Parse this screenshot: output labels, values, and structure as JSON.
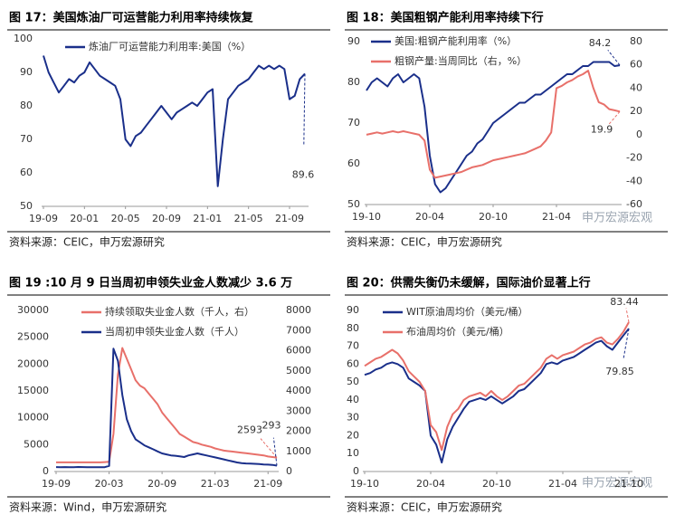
{
  "chart_data": [
    {
      "type": "line",
      "title": "图 17：美国炼油厂可运营能力利用率持续恢复",
      "source": "资料来源：CEIC，申万宏源研究",
      "categories": [
        "19-09",
        null,
        null,
        null,
        null,
        null,
        null,
        null,
        "20-01",
        null,
        null,
        null,
        null,
        null,
        null,
        null,
        "20-05",
        null,
        null,
        null,
        null,
        null,
        null,
        null,
        "20-09",
        null,
        null,
        null,
        null,
        null,
        null,
        null,
        "21-01",
        null,
        null,
        null,
        null,
        null,
        null,
        null,
        "21-05",
        null,
        null,
        null,
        null,
        null,
        null,
        null,
        "21-09",
        null,
        null,
        null
      ],
      "series": [
        {
          "name": "炼油厂可运营能力利用率:美国（%）",
          "color": "#1a2f8a",
          "values": [
            95,
            90,
            87,
            84,
            86,
            88,
            87,
            89,
            90,
            93,
            91,
            89,
            88,
            87,
            86,
            82,
            70,
            68,
            71,
            72,
            74,
            76,
            78,
            80,
            78,
            76,
            78,
            79,
            80,
            81,
            80,
            82,
            84,
            85,
            56,
            70,
            82,
            84,
            86,
            87,
            88,
            90,
            92,
            91,
            92,
            91,
            92,
            91,
            82,
            83,
            88,
            89.6
          ]
        }
      ],
      "annotations": [
        "89.6"
      ],
      "ylim": [
        50,
        100
      ],
      "yticks": [
        50,
        60,
        70,
        80,
        90,
        100
      ],
      "grid": false
    },
    {
      "type": "line",
      "title": "图 18：美国粗钢产能利用率持续下行",
      "source": "资料来源：CEIC，申万宏源研究",
      "watermark": "申万宏源宏观",
      "categories": [
        "19-10",
        null,
        null,
        null,
        null,
        null,
        null,
        null,
        null,
        null,
        null,
        null,
        "20-04",
        null,
        null,
        null,
        null,
        null,
        null,
        null,
        null,
        null,
        null,
        null,
        "20-10",
        null,
        null,
        null,
        null,
        null,
        null,
        null,
        null,
        null,
        null,
        null,
        "21-04",
        null,
        null,
        null,
        null,
        null,
        null,
        null,
        null,
        null,
        null,
        null,
        null
      ],
      "series": [
        {
          "name": "美国:粗钢产能利用率（%）",
          "color": "#1a2f8a",
          "values": [
            78,
            80,
            81,
            80,
            79,
            81,
            82,
            80,
            81,
            82,
            81,
            74,
            62,
            55,
            53,
            54,
            56,
            58,
            60,
            62,
            63,
            65,
            66,
            68,
            70,
            71,
            72,
            73,
            74,
            75,
            75,
            76,
            77,
            77,
            78,
            79,
            80,
            81,
            82,
            82,
            83,
            84,
            84,
            85,
            85,
            85,
            85,
            84,
            84.2
          ]
        },
        {
          "name": "粗钢产量:当周同比（右，%）",
          "color": "#e8706a",
          "axis": "y2",
          "values": [
            0,
            1,
            2,
            1,
            2,
            3,
            2,
            3,
            2,
            1,
            0,
            -5,
            -30,
            -37,
            -36,
            -35,
            -34,
            -33,
            -32,
            -30,
            -28,
            -27,
            -26,
            -24,
            -22,
            -21,
            -20,
            -19,
            -18,
            -17,
            -16,
            -14,
            -12,
            -10,
            -5,
            2,
            40,
            42,
            45,
            47,
            50,
            52,
            55,
            40,
            28,
            26,
            22,
            21,
            19.9
          ]
        }
      ],
      "annotations": [
        "84.2",
        "19.9"
      ],
      "ylim": [
        50,
        90
      ],
      "yticks": [
        50,
        60,
        70,
        80,
        90
      ],
      "y2lim": [
        -60,
        80
      ],
      "y2ticks": [
        -60,
        -40,
        -20,
        0,
        20,
        40,
        60,
        80
      ],
      "grid": false
    },
    {
      "type": "line",
      "title": "图 19 :10 月 9 日当周初申领失业金人数减少 3.6 万",
      "source": "资料来源：Wind，申万宏源研究",
      "categories": [
        "19-09",
        null,
        null,
        null,
        null,
        null,
        null,
        null,
        null,
        null,
        null,
        null,
        "20-03",
        null,
        null,
        null,
        null,
        null,
        null,
        null,
        null,
        null,
        null,
        null,
        "20-09",
        null,
        null,
        null,
        null,
        null,
        null,
        null,
        null,
        null,
        null,
        null,
        "21-03",
        null,
        null,
        null,
        null,
        null,
        null,
        null,
        null,
        null,
        null,
        null,
        "21-09",
        null,
        null
      ],
      "series": [
        {
          "name": "持续领取失业金人数（千人，右）",
          "color": "#e8706a",
          "values": [
            1700,
            1700,
            1700,
            1700,
            1700,
            1700,
            1700,
            1700,
            1700,
            1700,
            1700,
            1750,
            1800,
            7000,
            18000,
            23000,
            21000,
            19000,
            17000,
            16000,
            15500,
            14500,
            13500,
            12500,
            11000,
            10000,
            9000,
            8000,
            7000,
            6500,
            6000,
            5500,
            5300,
            5000,
            4800,
            4600,
            4300,
            4100,
            3900,
            3800,
            3700,
            3600,
            3500,
            3400,
            3300,
            3200,
            3100,
            3000,
            2800,
            2700,
            2593
          ]
        },
        {
          "name": "当周初申领失业金人数（千人）",
          "color": "#1a2f8a",
          "axis": "y2",
          "values": [
            220,
            215,
            220,
            210,
            215,
            225,
            220,
            210,
            215,
            215,
            210,
            215,
            280,
            6100,
            5500,
            3800,
            2600,
            2000,
            1600,
            1450,
            1300,
            1200,
            1100,
            1000,
            900,
            850,
            800,
            780,
            750,
            720,
            800,
            850,
            900,
            850,
            800,
            750,
            700,
            650,
            600,
            550,
            500,
            450,
            420,
            400,
            390,
            380,
            370,
            350,
            340,
            330,
            293
          ]
        }
      ],
      "annotations": [
        "2593",
        "293"
      ],
      "ylim": [
        0,
        30000
      ],
      "yticks": [
        0,
        5000,
        10000,
        15000,
        20000,
        25000,
        30000
      ],
      "y2lim": [
        0,
        8000
      ],
      "y2ticks": [
        0,
        1000,
        2000,
        3000,
        4000,
        5000,
        6000,
        7000,
        8000
      ],
      "grid": false
    },
    {
      "type": "line",
      "title": "图 20：供需失衡仍未缓解，国际油价显著上行",
      "source": "资料来源：CEIC，申万宏源研究",
      "watermark": "申万宏源宏观",
      "categories": [
        "19-10",
        null,
        null,
        null,
        null,
        null,
        null,
        null,
        null,
        null,
        null,
        null,
        "20-04",
        null,
        null,
        null,
        null,
        null,
        null,
        null,
        null,
        null,
        null,
        null,
        "20-10",
        null,
        null,
        null,
        null,
        null,
        null,
        null,
        null,
        null,
        null,
        null,
        "21-04",
        null,
        null,
        null,
        null,
        null,
        null,
        null,
        null,
        null,
        null,
        null,
        "21-10"
      ],
      "series": [
        {
          "name": "WIT原油周均价（美元/桶）",
          "color": "#1a2f8a",
          "values": [
            54,
            55,
            57,
            58,
            60,
            61,
            60,
            58,
            52,
            50,
            48,
            45,
            20,
            15,
            5,
            18,
            25,
            30,
            35,
            39,
            40,
            41,
            40,
            42,
            40,
            38,
            40,
            42,
            45,
            46,
            49,
            52,
            55,
            60,
            61,
            60,
            62,
            63,
            64,
            66,
            68,
            70,
            72,
            73,
            70,
            68,
            72,
            76,
            79.85
          ]
        },
        {
          "name": "布油周均价（美元/桶）",
          "color": "#e8706a",
          "values": [
            59,
            61,
            63,
            64,
            66,
            68,
            66,
            62,
            56,
            53,
            50,
            45,
            26,
            22,
            12,
            25,
            32,
            35,
            40,
            42,
            43,
            44,
            42,
            45,
            42,
            40,
            42,
            45,
            48,
            49,
            52,
            55,
            58,
            63,
            65,
            63,
            65,
            66,
            67,
            69,
            71,
            72,
            74,
            75,
            72,
            71,
            74,
            78,
            83.44
          ]
        }
      ],
      "annotations": [
        "79.85",
        "83.44"
      ],
      "ylim": [
        0,
        90
      ],
      "yticks": [
        0,
        10,
        20,
        30,
        40,
        50,
        60,
        70,
        80,
        90
      ],
      "grid": false
    }
  ]
}
